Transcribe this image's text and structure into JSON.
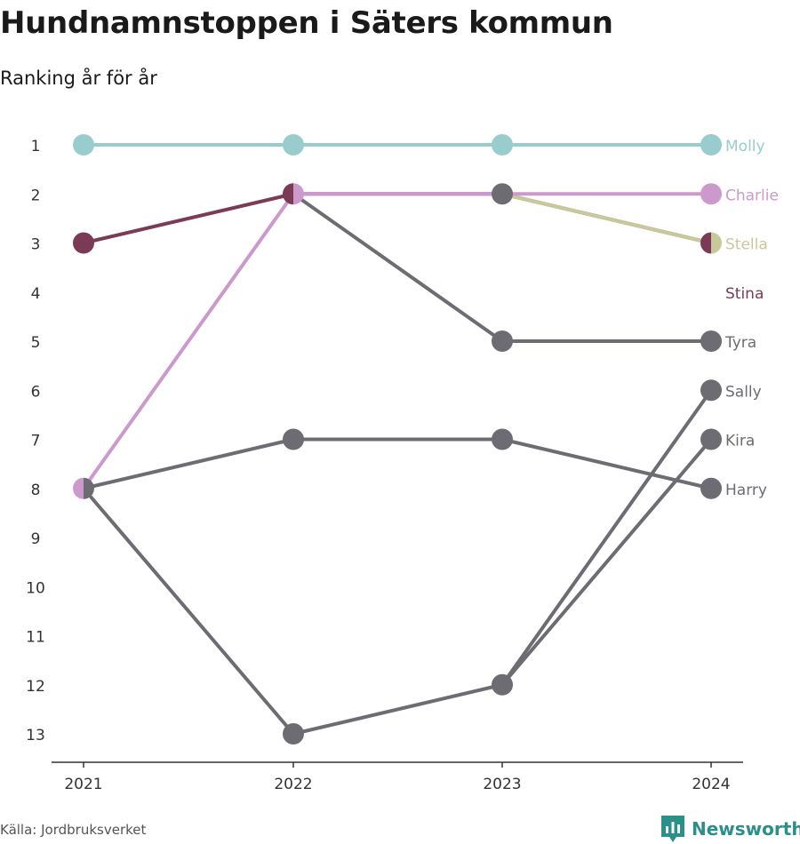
{
  "title": "Hundnamnstoppen i Säters kommun",
  "subtitle": "Ranking år för år",
  "source": "Källa: Jordbruksverket",
  "brand": "Newsworthy",
  "colors": {
    "brand": "#2b8f8a",
    "default_line": "#6d6c72",
    "axis": "#333333"
  },
  "chart_data": {
    "type": "line",
    "subtype": "bump",
    "x": [
      "2021",
      "2022",
      "2023",
      "2024"
    ],
    "y_ticks": [
      1,
      2,
      3,
      4,
      5,
      6,
      7,
      8,
      9,
      10,
      11,
      12,
      13
    ],
    "yinverted": true,
    "ylim": [
      1,
      13
    ],
    "grid": false,
    "series": [
      {
        "name": "Harry",
        "values": [
          8,
          7,
          7,
          8
        ],
        "color": "#6d6c72"
      },
      {
        "name": "Kira",
        "values": [
          8,
          13,
          12,
          7
        ],
        "color": "#6d6c72"
      },
      {
        "name": "Sally",
        "values": [
          null,
          null,
          12,
          6
        ],
        "color": "#6d6c72"
      },
      {
        "name": "Tyra",
        "values": [
          null,
          2,
          5,
          5
        ],
        "color": "#6d6c72"
      },
      {
        "name": "Stina",
        "values": [
          3,
          2,
          2,
          3
        ],
        "color": "#7b3a55"
      },
      {
        "name": "Stella",
        "values": [
          null,
          null,
          2,
          3
        ],
        "color": "#c8c99a"
      },
      {
        "name": "Charlie",
        "values": [
          8,
          2,
          2,
          2
        ],
        "color": "#cc99cc"
      },
      {
        "name": "Molly",
        "values": [
          1,
          1,
          1,
          1
        ],
        "color": "#99cccc"
      }
    ],
    "end_labels": [
      {
        "name": "Molly",
        "rank": 1,
        "color": "#99cccc"
      },
      {
        "name": "Charlie",
        "rank": 2,
        "color": "#cc99cc"
      },
      {
        "name": "Stella",
        "rank": 3,
        "color": "#c8c99a"
      },
      {
        "name": "Stina",
        "rank": 4,
        "color": "#7b3a55"
      },
      {
        "name": "Tyra",
        "rank": 5,
        "color": "#6d6c72"
      },
      {
        "name": "Sally",
        "rank": 6,
        "color": "#6d6c72"
      },
      {
        "name": "Kira",
        "rank": 7,
        "color": "#6d6c72"
      },
      {
        "name": "Harry",
        "rank": 8,
        "color": "#6d6c72"
      }
    ]
  }
}
